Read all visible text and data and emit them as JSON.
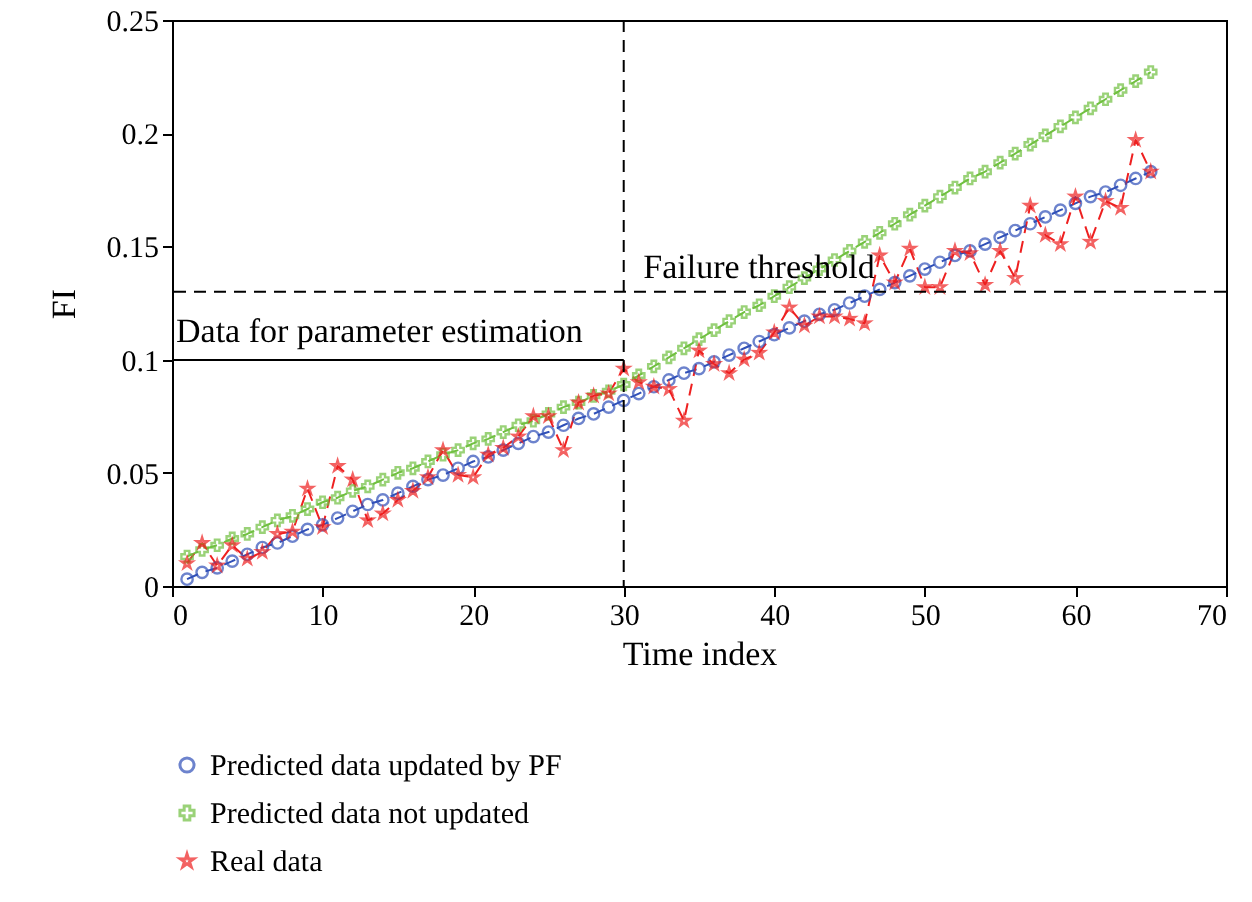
{
  "chart_data": {
    "type": "line",
    "xlabel": "Time index",
    "ylabel": "FI",
    "xlim": [
      0,
      70
    ],
    "xticks": [
      0,
      10,
      20,
      30,
      40,
      50,
      60,
      70
    ],
    "ylim": [
      0,
      0.25
    ],
    "yticks": [
      0,
      0.05,
      0.1,
      0.15,
      0.2,
      0.25
    ],
    "x": [
      1,
      2,
      3,
      4,
      5,
      6,
      7,
      8,
      9,
      10,
      11,
      12,
      13,
      14,
      15,
      16,
      17,
      18,
      19,
      20,
      21,
      22,
      23,
      24,
      25,
      26,
      27,
      28,
      29,
      30,
      31,
      32,
      33,
      34,
      35,
      36,
      37,
      38,
      39,
      40,
      41,
      42,
      43,
      44,
      45,
      46,
      47,
      48,
      49,
      50,
      51,
      52,
      53,
      54,
      55,
      56,
      57,
      58,
      59,
      60,
      61,
      62,
      63,
      64,
      65
    ],
    "series": [
      {
        "name": "Predicted data updated by PF",
        "color": "#3050b8",
        "marker": "circle",
        "values": [
          0.003,
          0.006,
          0.008,
          0.011,
          0.014,
          0.017,
          0.019,
          0.022,
          0.025,
          0.027,
          0.03,
          0.033,
          0.036,
          0.038,
          0.041,
          0.044,
          0.047,
          0.049,
          0.052,
          0.055,
          0.057,
          0.06,
          0.063,
          0.066,
          0.068,
          0.071,
          0.074,
          0.076,
          0.079,
          0.082,
          0.085,
          0.088,
          0.091,
          0.094,
          0.096,
          0.099,
          0.102,
          0.105,
          0.108,
          0.111,
          0.114,
          0.117,
          0.12,
          0.122,
          0.125,
          0.128,
          0.131,
          0.134,
          0.137,
          0.14,
          0.143,
          0.146,
          0.148,
          0.151,
          0.154,
          0.157,
          0.16,
          0.163,
          0.166,
          0.169,
          0.172,
          0.174,
          0.177,
          0.18,
          0.183
        ]
      },
      {
        "name": "Predicted data not updated",
        "color": "#70c040",
        "marker": "cross",
        "values": [
          0.013,
          0.016,
          0.018,
          0.021,
          0.023,
          0.026,
          0.029,
          0.031,
          0.034,
          0.037,
          0.039,
          0.042,
          0.044,
          0.047,
          0.05,
          0.052,
          0.055,
          0.058,
          0.06,
          0.063,
          0.065,
          0.068,
          0.071,
          0.073,
          0.076,
          0.079,
          0.081,
          0.084,
          0.086,
          0.089,
          0.093,
          0.097,
          0.101,
          0.105,
          0.109,
          0.113,
          0.117,
          0.121,
          0.124,
          0.128,
          0.132,
          0.136,
          0.14,
          0.144,
          0.148,
          0.152,
          0.156,
          0.16,
          0.164,
          0.168,
          0.172,
          0.176,
          0.18,
          0.183,
          0.187,
          0.191,
          0.195,
          0.199,
          0.203,
          0.207,
          0.211,
          0.215,
          0.219,
          0.223,
          0.227
        ]
      },
      {
        "name": "Real data",
        "color": "#ee2020",
        "marker": "star",
        "values": [
          0.01,
          0.019,
          0.009,
          0.018,
          0.012,
          0.015,
          0.023,
          0.024,
          0.043,
          0.026,
          0.053,
          0.047,
          0.029,
          0.032,
          0.038,
          0.042,
          0.048,
          0.06,
          0.049,
          0.048,
          0.058,
          0.061,
          0.066,
          0.075,
          0.075,
          0.06,
          0.081,
          0.084,
          0.085,
          0.096,
          0.09,
          0.088,
          0.087,
          0.073,
          0.104,
          0.098,
          0.094,
          0.1,
          0.103,
          0.112,
          0.123,
          0.115,
          0.119,
          0.119,
          0.118,
          0.116,
          0.146,
          0.134,
          0.149,
          0.132,
          0.132,
          0.148,
          0.147,
          0.133,
          0.148,
          0.136,
          0.168,
          0.155,
          0.151,
          0.172,
          0.152,
          0.17,
          0.167,
          0.197,
          0.183
        ]
      }
    ],
    "ref_lines": [
      {
        "axis": "y",
        "value": 0.13,
        "label": "Failure threshold",
        "color": "#000000",
        "line_style": "dashed"
      },
      {
        "axis": "x",
        "value": 30,
        "color": "#000000",
        "line_style": "dashed"
      }
    ],
    "annotations": [
      "Data for parameter estimation"
    ],
    "line_style": "dashed",
    "grid": false,
    "legend": "bottom left"
  }
}
